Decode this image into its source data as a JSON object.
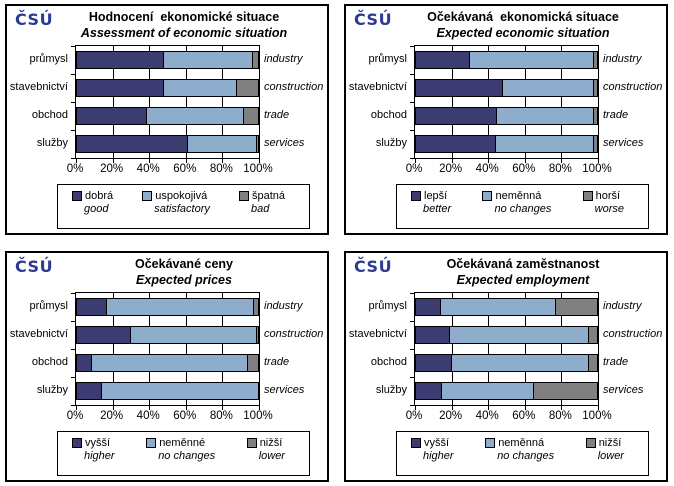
{
  "logo": {
    "text": "ČSÚ",
    "color": "#2C3A94"
  },
  "style": {
    "series_colors": [
      "#3C3C73",
      "#8EACCC",
      "#808080"
    ],
    "grid_color": "#000000",
    "background": "#FFFFFF"
  },
  "chart_data": [
    {
      "type": "bar",
      "orientation": "horizontal",
      "stacked": true,
      "title_cz": "Hodnocení  ekonomické situace",
      "title_en": "Assessment of economic situation",
      "categories": [
        "průmysl",
        "stavebnictví",
        "obchod",
        "služby"
      ],
      "categories_en": [
        "industry",
        "construction",
        "trade",
        "services"
      ],
      "xlim": [
        0,
        100
      ],
      "xticks": [
        "0%",
        "20%",
        "40%",
        "60%",
        "80%",
        "100%"
      ],
      "series": [
        {
          "name_cz": "dobrá",
          "name_en": "good",
          "values": [
            48,
            48,
            39,
            61
          ]
        },
        {
          "name_cz": "uspokojivá",
          "name_en": "satisfactory",
          "values": [
            49,
            40,
            53,
            38
          ]
        },
        {
          "name_cz": "špatná",
          "name_en": "bad",
          "values": [
            3,
            12,
            8,
            1
          ]
        }
      ]
    },
    {
      "type": "bar",
      "orientation": "horizontal",
      "stacked": true,
      "title_cz": "Očekávaná  ekonomická situace",
      "title_en": "Expected economic situation",
      "categories": [
        "průmysl",
        "stavebnictví",
        "obchod",
        "služby"
      ],
      "categories_en": [
        "industry",
        "construction",
        "trade",
        "services"
      ],
      "xlim": [
        0,
        100
      ],
      "xticks": [
        "0%",
        "20%",
        "40%",
        "60%",
        "80%",
        "100%"
      ],
      "series": [
        {
          "name_cz": "lepší",
          "name_en": "better",
          "values": [
            30,
            48,
            45,
            44
          ]
        },
        {
          "name_cz": "neměnná",
          "name_en": "no changes",
          "values": [
            68,
            50,
            53,
            54
          ]
        },
        {
          "name_cz": "horší",
          "name_en": "worse",
          "values": [
            2,
            2,
            2,
            2
          ]
        }
      ]
    },
    {
      "type": "bar",
      "orientation": "horizontal",
      "stacked": true,
      "title_cz": "Očekávané ceny",
      "title_en": "Expected prices",
      "categories": [
        "průmysl",
        "stavebnictví",
        "obchod",
        "služby"
      ],
      "categories_en": [
        "industry",
        "construction",
        "trade",
        "services"
      ],
      "xlim": [
        0,
        100
      ],
      "xticks": [
        "0%",
        "20%",
        "40%",
        "60%",
        "80%",
        "100%"
      ],
      "series": [
        {
          "name_cz": "vyšší",
          "name_en": "higher",
          "values": [
            17,
            30,
            9,
            14
          ]
        },
        {
          "name_cz": "neměnné",
          "name_en": "no changes",
          "values": [
            80,
            69,
            85,
            86
          ]
        },
        {
          "name_cz": "nižší",
          "name_en": "lower",
          "values": [
            3,
            1,
            6,
            0
          ]
        }
      ]
    },
    {
      "type": "bar",
      "orientation": "horizontal",
      "stacked": true,
      "title_cz": "Očekávaná zaměstnanost",
      "title_en": "Expected employment",
      "categories": [
        "průmysl",
        "stavebnictví",
        "obchod",
        "služby"
      ],
      "categories_en": [
        "industry",
        "construction",
        "trade",
        "services"
      ],
      "xlim": [
        0,
        100
      ],
      "xticks": [
        "0%",
        "20%",
        "40%",
        "60%",
        "80%",
        "100%"
      ],
      "series": [
        {
          "name_cz": "vyšší",
          "name_en": "higher",
          "values": [
            14,
            19,
            20,
            15
          ]
        },
        {
          "name_cz": "neměnná",
          "name_en": "no changes",
          "values": [
            63,
            76,
            75,
            50
          ]
        },
        {
          "name_cz": "nižší",
          "name_en": "lower",
          "values": [
            23,
            5,
            5,
            35
          ]
        }
      ]
    }
  ]
}
